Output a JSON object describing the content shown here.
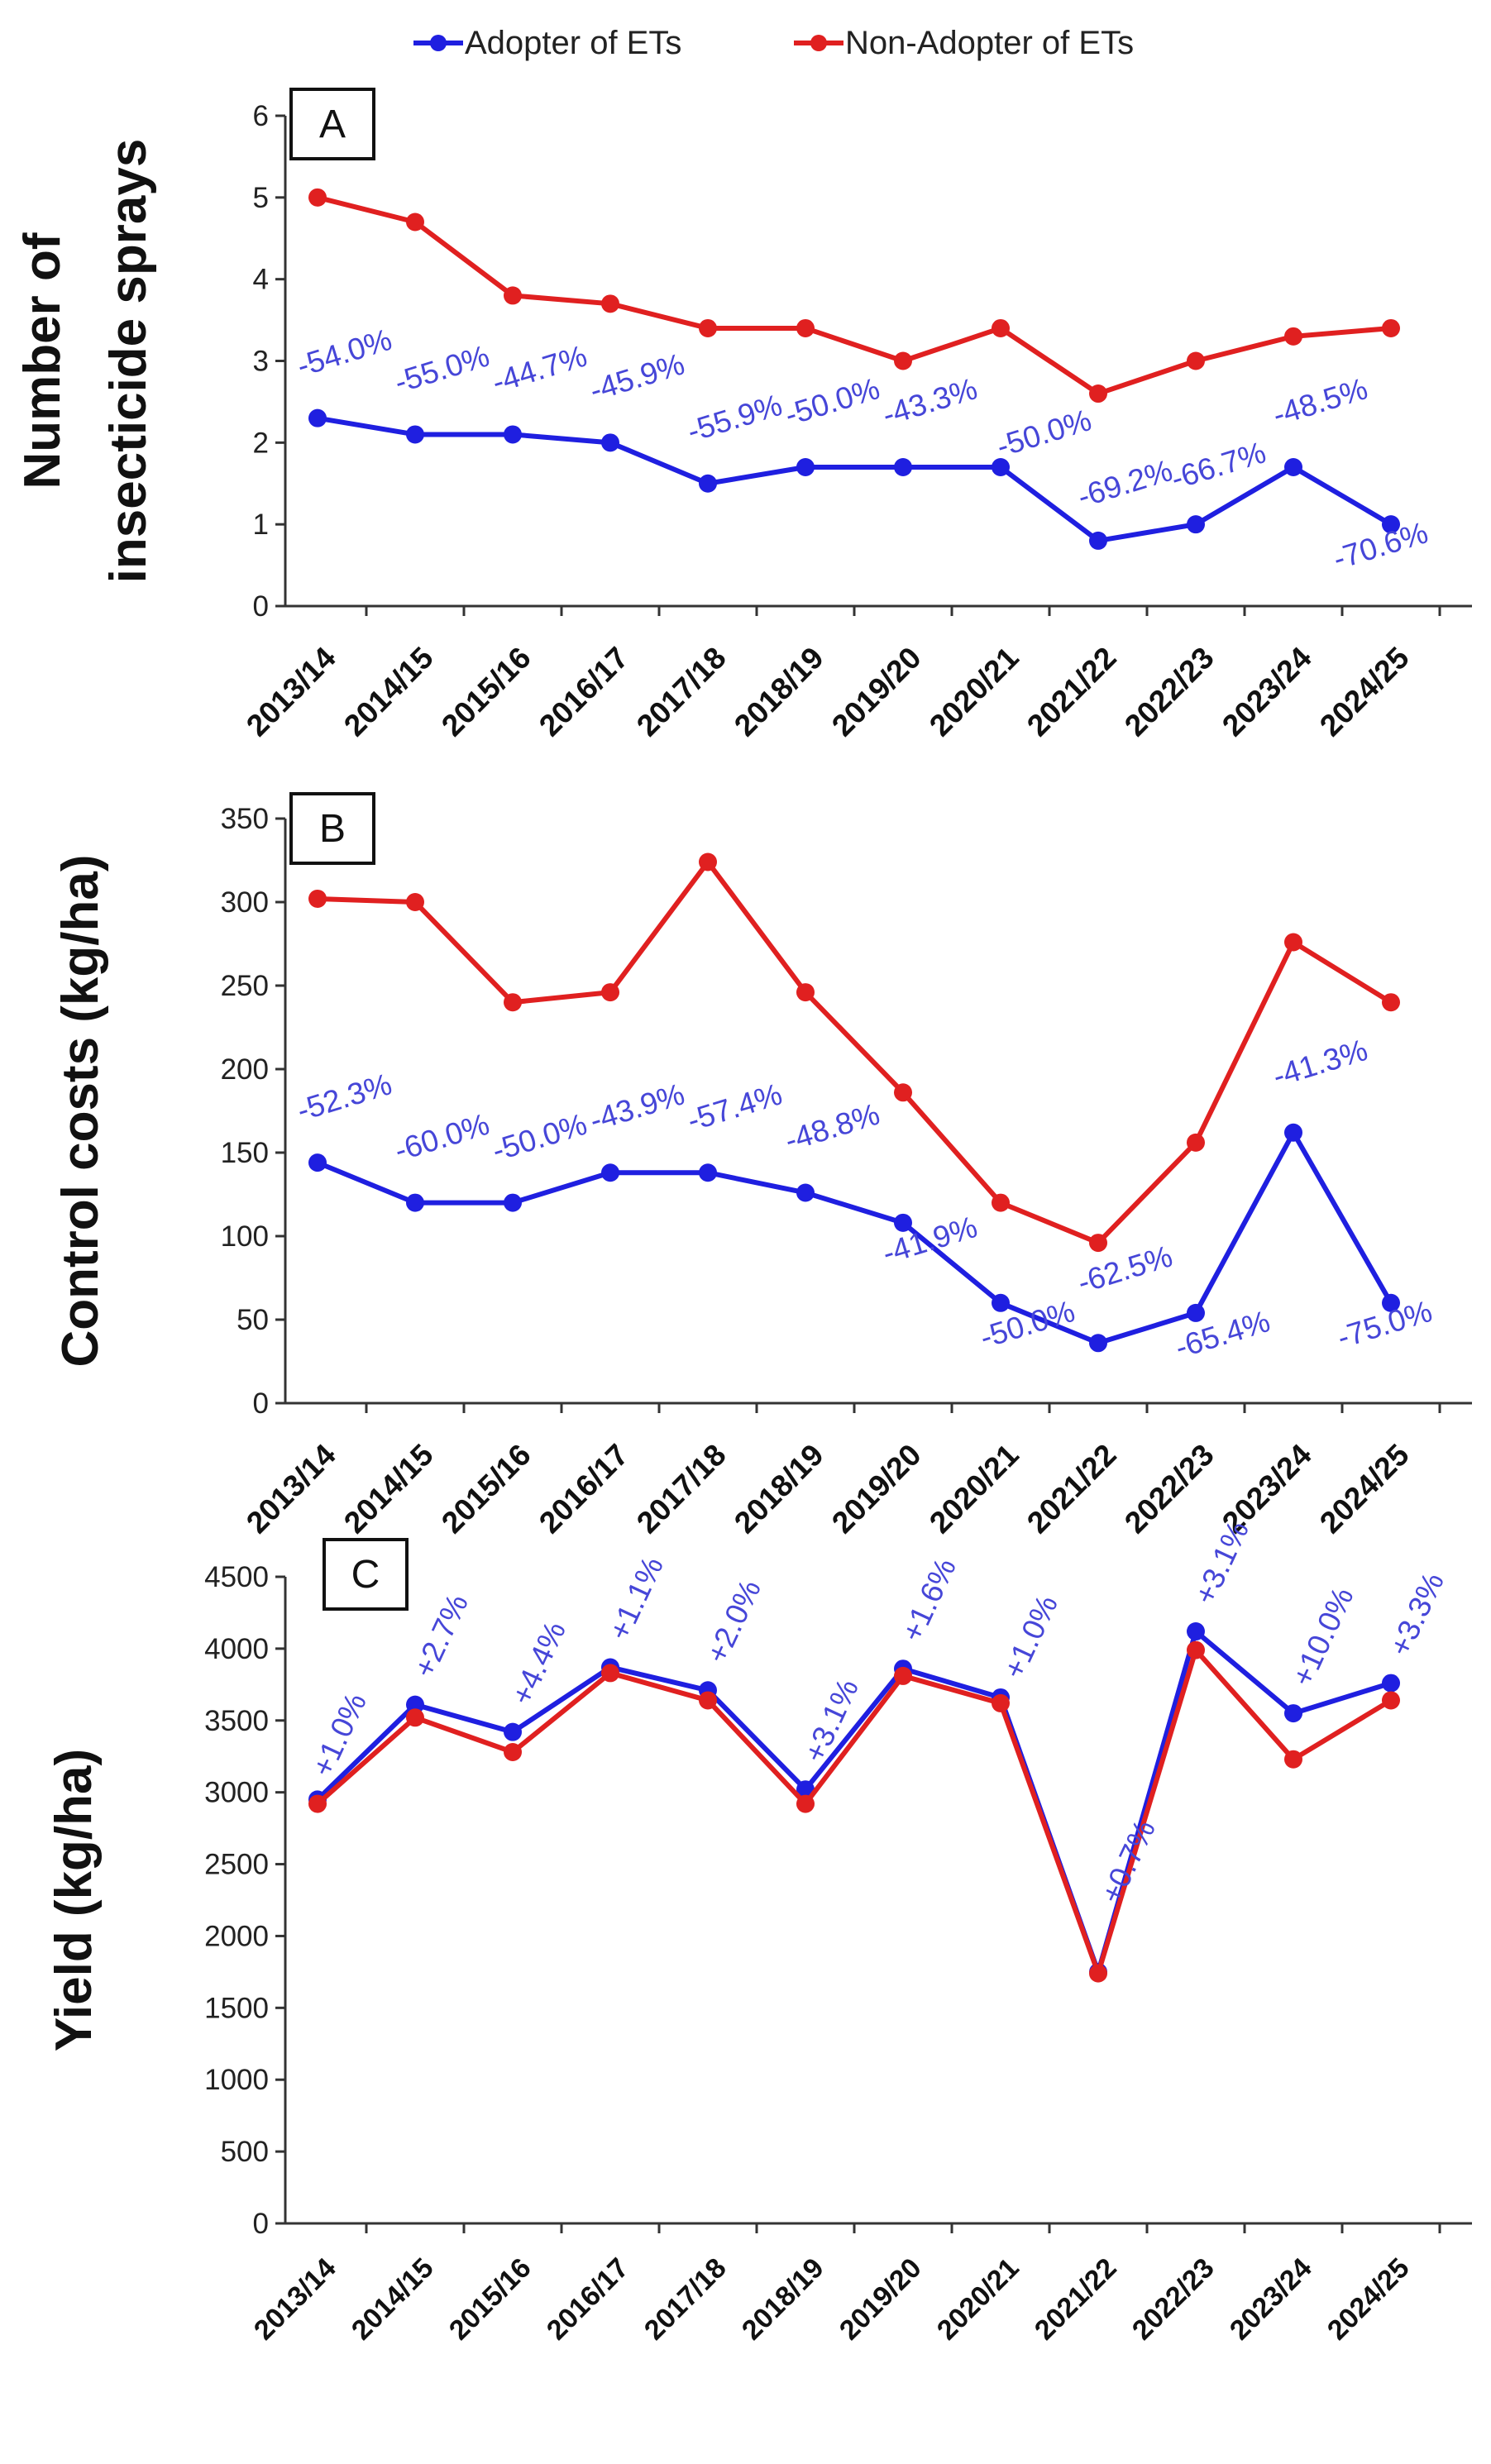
{
  "legend": {
    "items": [
      {
        "label": "Adopter of ETs",
        "color": "#1f1fe0"
      },
      {
        "label": "Non-Adopter of ETs",
        "color": "#e02020"
      }
    ]
  },
  "colors": {
    "adopter": "#1f1fe0",
    "non_adopter": "#e02020",
    "axis": "#333333",
    "label_adopter": "#4646d8"
  },
  "chart_data": [
    {
      "type": "line",
      "panel": "A",
      "ylabel_lines": [
        "Number of",
        "insecticide sprays"
      ],
      "ylim": [
        0,
        6
      ],
      "yticks": [
        0,
        1,
        2,
        3,
        4,
        5,
        6
      ],
      "categories": [
        "2013/14",
        "2014/15",
        "2015/16",
        "2016/17",
        "2017/18",
        "2018/19",
        "2019/20",
        "2020/21",
        "2021/22",
        "2022/23",
        "2023/24",
        "2024/25"
      ],
      "series": [
        {
          "name": "Adopter of ETs",
          "values": [
            2.3,
            2.1,
            2.1,
            2.0,
            1.5,
            1.7,
            1.7,
            1.7,
            0.8,
            1.0,
            1.7,
            1.0
          ]
        },
        {
          "name": "Non-Adopter of ETs",
          "values": [
            5.0,
            4.7,
            3.8,
            3.7,
            3.4,
            3.4,
            3.0,
            3.4,
            2.6,
            3.0,
            3.3,
            3.4
          ]
        }
      ],
      "annotations": [
        "-54.0%",
        "-55.0%",
        "-44.7%",
        "-45.9%",
        "-55.9%",
        "-50.0%",
        "-43.3%",
        "-50.0%",
        "-69.2%",
        "-66.7%",
        "-48.5%",
        "-70.6%"
      ]
    },
    {
      "type": "line",
      "panel": "B",
      "ylabel_lines": [
        "Control costs (kg/ha)"
      ],
      "ylim": [
        0,
        350
      ],
      "yticks": [
        0,
        50,
        100,
        150,
        200,
        250,
        300,
        350
      ],
      "categories": [
        "2013/14",
        "2014/15",
        "2015/16",
        "2016/17",
        "2017/18",
        "2018/19",
        "2019/20",
        "2020/21",
        "2021/22",
        "2022/23",
        "2023/24",
        "2024/25"
      ],
      "series": [
        {
          "name": "Adopter of ETs",
          "values": [
            144,
            120,
            120,
            138,
            138,
            126,
            108,
            60,
            36,
            54,
            162,
            60
          ]
        },
        {
          "name": "Non-Adopter of ETs",
          "values": [
            302,
            300,
            240,
            246,
            324,
            246,
            186,
            120,
            96,
            156,
            276,
            240
          ]
        }
      ],
      "annotations": [
        "-52.3%",
        "-60.0%",
        "-50.0%",
        "-43.9%",
        "-57.4%",
        "-48.8%",
        "-41.9%",
        "-50.0%",
        "-62.5%",
        "-65.4%",
        "-41.3%",
        "-75.0%"
      ]
    },
    {
      "type": "line",
      "panel": "C",
      "ylabel_lines": [
        "Yield (kg/ha)"
      ],
      "ylim": [
        0,
        4500
      ],
      "yticks": [
        0,
        500,
        1000,
        1500,
        2000,
        2500,
        3000,
        3500,
        4000,
        4500
      ],
      "categories": [
        "2013/14",
        "2014/15",
        "2015/16",
        "2016/17",
        "2017/18",
        "2018/19",
        "2019/20",
        "2020/21",
        "2021/22",
        "2022/23",
        "2023/24",
        "2024/25"
      ],
      "series": [
        {
          "name": "Adopter of ETs",
          "values": [
            2950,
            3610,
            3420,
            3870,
            3710,
            3020,
            3860,
            3660,
            1750,
            4120,
            3550,
            3760
          ]
        },
        {
          "name": "Non-Adopter of ETs",
          "values": [
            2920,
            3520,
            3280,
            3830,
            3640,
            2920,
            3810,
            3620,
            1740,
            3990,
            3230,
            3640
          ]
        }
      ],
      "annotations": [
        "+1.0%",
        "+2.7%",
        "+4.4%",
        "+1.1%",
        "+2.0%",
        "+3.1%",
        "+1.6%",
        "+1.0%",
        "+0.7%",
        "+3.1%",
        "+10.0%",
        "+3.3%"
      ]
    }
  ]
}
